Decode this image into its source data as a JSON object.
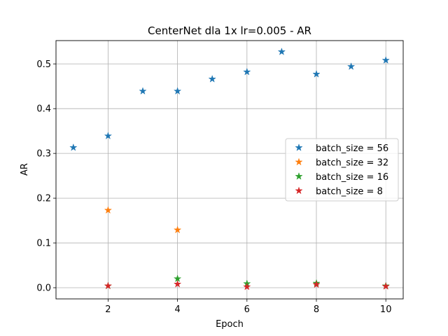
{
  "chart_data": {
    "type": "scatter",
    "title": "CenterNet dla 1x lr=0.005 - AR",
    "xlabel": "Epoch",
    "ylabel": "AR",
    "xlim": [
      0.5,
      10.5
    ],
    "ylim": [
      -0.025,
      0.552
    ],
    "xticks": [
      2,
      4,
      6,
      8,
      10
    ],
    "yticks": [
      0.0,
      0.1,
      0.2,
      0.3,
      0.4,
      0.5
    ],
    "ytick_labels": [
      "0.0",
      "0.1",
      "0.2",
      "0.3",
      "0.4",
      "0.5"
    ],
    "grid": "on",
    "marker": "star",
    "legend_position": "center-right",
    "series": [
      {
        "name": "batch_size = 56",
        "color": "#1f77b4",
        "x": [
          1,
          2,
          3,
          4,
          5,
          6,
          7,
          8,
          9,
          10
        ],
        "y": [
          0.313,
          0.339,
          0.439,
          0.439,
          0.466,
          0.482,
          0.527,
          0.477,
          0.494,
          0.508
        ]
      },
      {
        "name": "batch_size = 32",
        "color": "#ff7f0e",
        "x": [
          2,
          4
        ],
        "y": [
          0.173,
          0.129
        ]
      },
      {
        "name": "batch_size = 16",
        "color": "#2ca02c",
        "x": [
          2,
          4,
          6,
          8,
          10
        ],
        "y": [
          0.004,
          0.02,
          0.009,
          0.01,
          0.004
        ]
      },
      {
        "name": "batch_size = 8",
        "color": "#d62728",
        "x": [
          2,
          4,
          6,
          8,
          10
        ],
        "y": [
          0.004,
          0.008,
          0.002,
          0.007,
          0.003
        ]
      }
    ]
  }
}
